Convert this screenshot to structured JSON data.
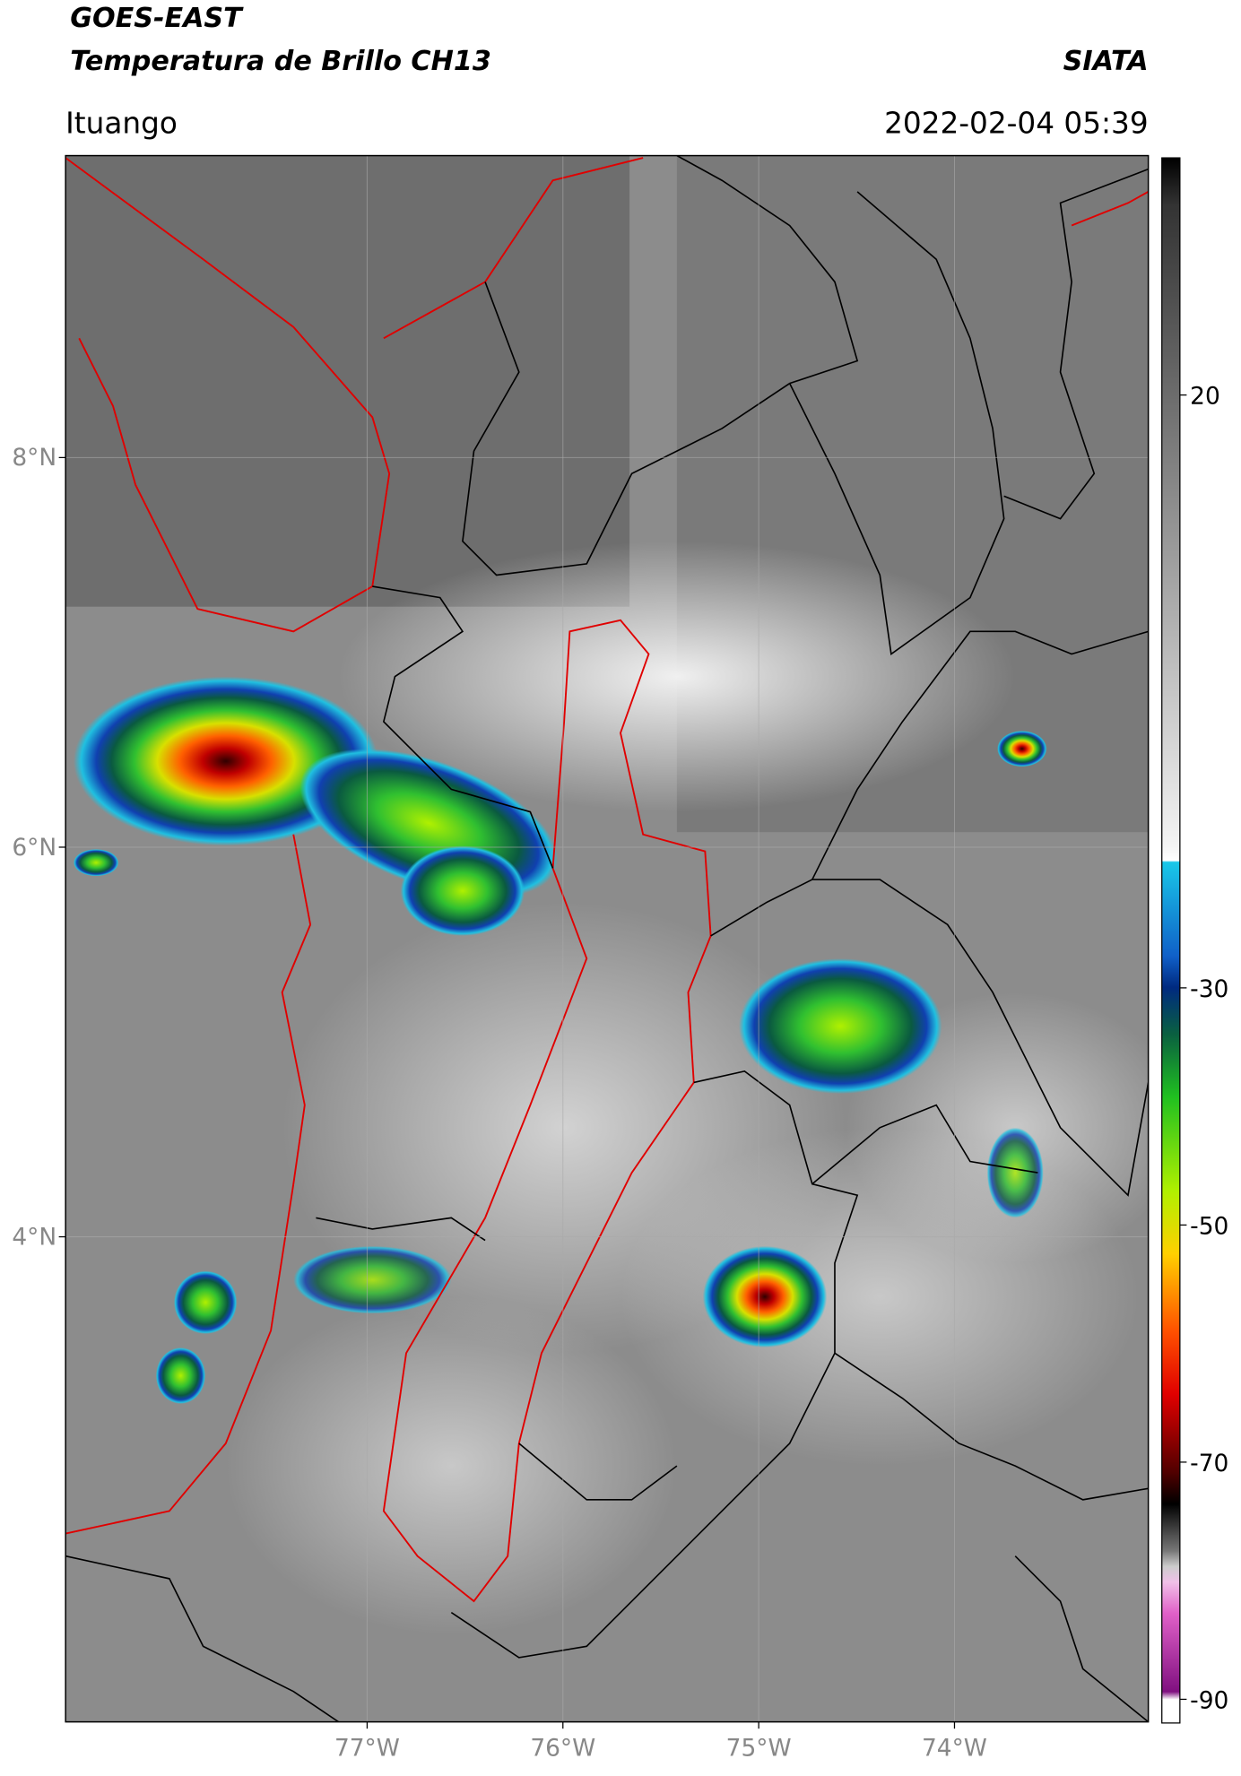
{
  "header": {
    "satellite": "GOES-EAST",
    "product": "Temperatura de Brillo CH13",
    "organization": "SIATA",
    "location": "Ituango",
    "datetime": "2022-02-04 05:39"
  },
  "map": {
    "xlim": [
      -78.54,
      -73.01
    ],
    "ylim": [
      1.51,
      9.55
    ],
    "lat_ticks": [
      {
        "value": 8,
        "label": "8°N"
      },
      {
        "value": 6,
        "label": "6°N"
      },
      {
        "value": 4,
        "label": "4°N"
      }
    ],
    "lon_ticks": [
      {
        "value": -77,
        "label": "77°W"
      },
      {
        "value": -76,
        "label": "76°W"
      },
      {
        "value": -75,
        "label": "75°W"
      },
      {
        "value": -74,
        "label": "74°W"
      }
    ],
    "grid": true
  },
  "colorbar": {
    "lim": [
      -92,
      40
    ],
    "ticks": [
      20,
      -30,
      -50,
      -70,
      -90
    ]
  }
}
